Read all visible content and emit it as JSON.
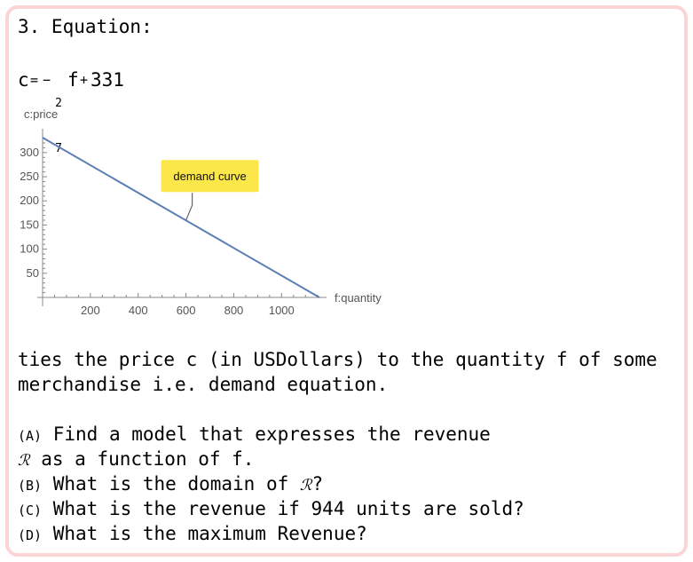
{
  "problem": {
    "heading": "3. Equation:",
    "equation": {
      "lhs": "c",
      "eq": "=",
      "minus": "−",
      "num": "2",
      "den": "7",
      "var": "f",
      "plus": "+",
      "const": "331"
    },
    "description_line1": "ties the price c (in USDollars) to the quantity f of some",
    "description_line2": "merchandise i.e. demand equation.",
    "questions": {
      "a_label": "(A)",
      "a_text1": " Find a model that expresses the revenue",
      "a_symbol": "ℛ",
      "a_text2": " as a function of f.",
      "b_label": "(B)",
      "b_text": " What is the domain of ",
      "b_symbol": "ℛ",
      "b_end": "?",
      "c_label": "(C)",
      "c_text": " What is the revenue if 944 units are sold?",
      "d_label": "(D)",
      "d_text": " What is the maximum Revenue?"
    }
  },
  "chart_data": {
    "type": "line",
    "xlabel": "f:quantity",
    "ylabel": "c:price",
    "xlim": [
      0,
      1158.5
    ],
    "ylim": [
      0,
      331
    ],
    "x_ticks": [
      200,
      400,
      600,
      800,
      1000
    ],
    "y_ticks": [
      50,
      100,
      150,
      200,
      250,
      300
    ],
    "series": [
      {
        "x": [
          0,
          1158.5
        ],
        "y": [
          331,
          0
        ]
      }
    ],
    "annotation": {
      "text": "demand curve",
      "x": 600,
      "y": 159.6
    },
    "line_color": "#5b7fb5",
    "label_bg": "#fbe74a",
    "grid": false
  }
}
